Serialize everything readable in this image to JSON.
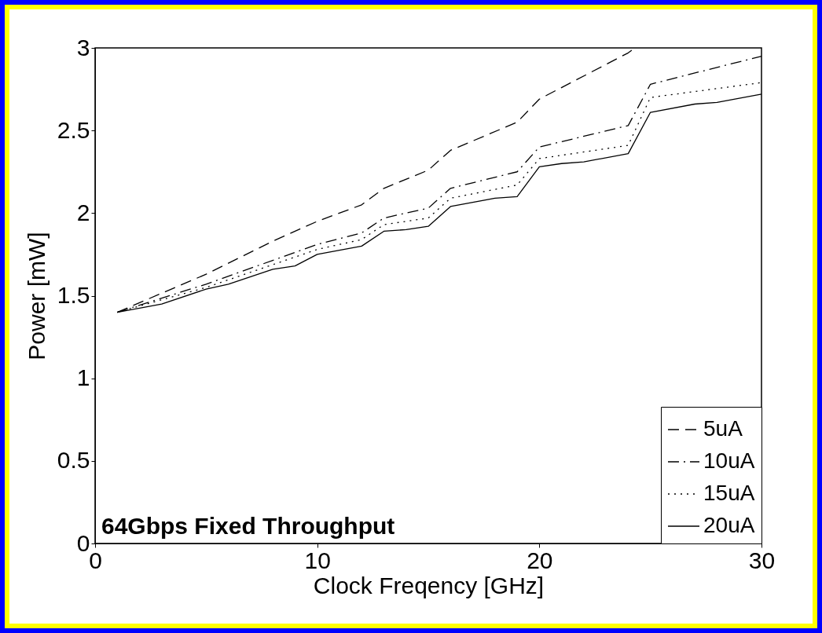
{
  "chart_data": {
    "type": "line",
    "xlabel": "Clock Freqency [GHz]",
    "ylabel": "Power [mW]",
    "xlim": [
      0,
      30
    ],
    "ylim": [
      0,
      3
    ],
    "xticks": [
      0,
      10,
      20,
      30
    ],
    "yticks": [
      0,
      0.5,
      1,
      1.5,
      2,
      2.5,
      3
    ],
    "grid": false,
    "legend": "bottom right",
    "annotations": [
      "64Gbps Fixed Throughput"
    ],
    "series": [
      {
        "name": "5uA",
        "color": "#000000",
        "line_style": "dashed",
        "x": [
          1,
          5,
          8,
          10,
          12,
          13,
          15,
          16,
          19,
          20,
          24,
          24.3
        ],
        "values": [
          1.4,
          1.63,
          1.83,
          1.95,
          2.05,
          2.15,
          2.26,
          2.38,
          2.55,
          2.69,
          2.97,
          3.0
        ]
      },
      {
        "name": "10uA",
        "color": "#000000",
        "line_style": "dashdot",
        "x": [
          1,
          5,
          10,
          12,
          13,
          15,
          16,
          19,
          20,
          24,
          25,
          30
        ],
        "values": [
          1.4,
          1.57,
          1.81,
          1.88,
          1.97,
          2.03,
          2.15,
          2.25,
          2.4,
          2.53,
          2.78,
          2.95
        ]
      },
      {
        "name": "15uA",
        "color": "#000000",
        "line_style": "dotted",
        "x": [
          1,
          5,
          10,
          12,
          13,
          15,
          16,
          19,
          20,
          24,
          25,
          30
        ],
        "values": [
          1.4,
          1.55,
          1.78,
          1.84,
          1.93,
          1.97,
          2.09,
          2.17,
          2.33,
          2.41,
          2.7,
          2.79
        ]
      },
      {
        "name": "20uA",
        "color": "#000000",
        "line_style": "solid",
        "x": [
          1,
          3,
          5,
          6,
          8,
          9,
          10,
          12,
          13,
          14,
          15,
          16,
          18,
          19,
          20,
          21,
          22,
          24,
          25,
          27,
          28,
          30
        ],
        "values": [
          1.4,
          1.45,
          1.54,
          1.57,
          1.66,
          1.68,
          1.75,
          1.8,
          1.89,
          1.9,
          1.92,
          2.04,
          2.09,
          2.1,
          2.28,
          2.3,
          2.31,
          2.36,
          2.61,
          2.66,
          2.67,
          2.72
        ]
      }
    ]
  }
}
